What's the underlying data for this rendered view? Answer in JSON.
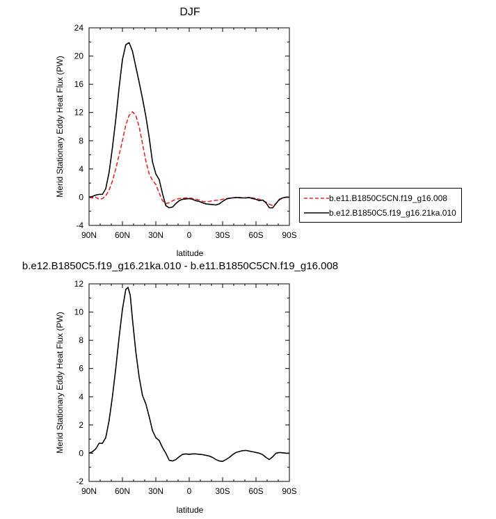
{
  "chart_data": [
    {
      "type": "line",
      "title": "DJF",
      "xlabel": "latitude",
      "ylabel": "Merid Stationary Eddy Heat Flux (PW)",
      "xlim": [
        90,
        -90
      ],
      "ylim": [
        -4,
        24
      ],
      "x_ticks": [
        "90N",
        "60N",
        "30N",
        "0",
        "30S",
        "60S",
        "90S"
      ],
      "y_ticks": [
        "-4",
        "0",
        "4",
        "8",
        "12",
        "16",
        "20",
        "24"
      ],
      "legend_position": "right",
      "series": [
        {
          "name": "b.e11.B1850C5CN.f19_g16.008",
          "color": "#e8262a",
          "style": "dashed",
          "points": [
            [
              90,
              0
            ],
            [
              87,
              -0.1
            ],
            [
              84,
              0
            ],
            [
              81,
              -0.3
            ],
            [
              78,
              -0.2
            ],
            [
              75,
              0.2
            ],
            [
              72,
              1.0
            ],
            [
              69,
              2.3
            ],
            [
              66,
              4.0
            ],
            [
              63,
              6.0
            ],
            [
              60,
              8.0
            ],
            [
              57,
              10.2
            ],
            [
              54,
              11.6
            ],
            [
              51,
              12.1
            ],
            [
              48,
              11.6
            ],
            [
              45,
              10.0
            ],
            [
              42,
              7.6
            ],
            [
              39,
              5.2
            ],
            [
              36,
              3.3
            ],
            [
              33,
              2.4
            ],
            [
              30,
              1.8
            ],
            [
              27,
              0.6
            ],
            [
              24,
              -0.5
            ],
            [
              21,
              -0.9
            ],
            [
              18,
              -0.8
            ],
            [
              15,
              -0.5
            ],
            [
              12,
              -0.3
            ],
            [
              9,
              -0.2
            ],
            [
              6,
              -0.15
            ],
            [
              3,
              -0.1
            ],
            [
              0,
              -0.1
            ],
            [
              -3,
              -0.2
            ],
            [
              -6,
              -0.3
            ],
            [
              -9,
              -0.4
            ],
            [
              -12,
              -0.6
            ],
            [
              -15,
              -0.65
            ],
            [
              -18,
              -0.6
            ],
            [
              -21,
              -0.5
            ],
            [
              -24,
              -0.45
            ],
            [
              -27,
              -0.4
            ],
            [
              -30,
              -0.3
            ],
            [
              -33,
              -0.2
            ],
            [
              -36,
              -0.15
            ],
            [
              -39,
              -0.1
            ],
            [
              -42,
              -0.05
            ],
            [
              -45,
              -0.1
            ],
            [
              -48,
              -0.1
            ],
            [
              -51,
              -0.1
            ],
            [
              -54,
              -0.05
            ],
            [
              -57,
              -0.1
            ],
            [
              -60,
              -0.2
            ],
            [
              -63,
              -0.3
            ],
            [
              -66,
              -0.5
            ],
            [
              -69,
              -0.7
            ],
            [
              -72,
              -1.0
            ],
            [
              -75,
              -1.2
            ],
            [
              -78,
              -0.9
            ],
            [
              -81,
              -0.4
            ],
            [
              -84,
              -0.1
            ],
            [
              -87,
              0
            ],
            [
              -90,
              0
            ]
          ]
        },
        {
          "name": "b.e12.B1850C5.f19_g16.21ka.010",
          "color": "#000000",
          "style": "solid",
          "points": [
            [
              90,
              0
            ],
            [
              87,
              0.1
            ],
            [
              84,
              0.3
            ],
            [
              81,
              0.4
            ],
            [
              78,
              0.4
            ],
            [
              75,
              1.2
            ],
            [
              72,
              3.5
            ],
            [
              69,
              7.0
            ],
            [
              66,
              11.0
            ],
            [
              63,
              15.5
            ],
            [
              60,
              19.5
            ],
            [
              57,
              21.6
            ],
            [
              54,
              21.9
            ],
            [
              51,
              20.7
            ],
            [
              48,
              18.5
            ],
            [
              45,
              16.3
            ],
            [
              42,
              14.0
            ],
            [
              39,
              11.5
            ],
            [
              36,
              8.5
            ],
            [
              33,
              5.0
            ],
            [
              30,
              3.3
            ],
            [
              27,
              2.5
            ],
            [
              24,
              0.5
            ],
            [
              21,
              -1.2
            ],
            [
              18,
              -1.5
            ],
            [
              15,
              -1.4
            ],
            [
              12,
              -0.9
            ],
            [
              9,
              -0.5
            ],
            [
              6,
              -0.3
            ],
            [
              3,
              -0.25
            ],
            [
              0,
              -0.2
            ],
            [
              -3,
              -0.3
            ],
            [
              -6,
              -0.5
            ],
            [
              -9,
              -0.6
            ],
            [
              -12,
              -0.8
            ],
            [
              -15,
              -0.95
            ],
            [
              -18,
              -1.0
            ],
            [
              -21,
              -1.05
            ],
            [
              -24,
              -1.1
            ],
            [
              -27,
              -0.95
            ],
            [
              -30,
              -0.6
            ],
            [
              -33,
              -0.3
            ],
            [
              -36,
              -0.15
            ],
            [
              -39,
              -0.1
            ],
            [
              -42,
              -0.05
            ],
            [
              -45,
              -0.05
            ],
            [
              -48,
              -0.1
            ],
            [
              -51,
              -0.1
            ],
            [
              -54,
              -0.05
            ],
            [
              -57,
              -0.2
            ],
            [
              -60,
              -0.3
            ],
            [
              -63,
              -0.5
            ],
            [
              -66,
              -0.4
            ],
            [
              -69,
              -0.8
            ],
            [
              -72,
              -1.5
            ],
            [
              -75,
              -1.5
            ],
            [
              -78,
              -0.9
            ],
            [
              -81,
              -0.3
            ],
            [
              -84,
              -0.1
            ],
            [
              -87,
              0
            ],
            [
              -90,
              0
            ]
          ]
        }
      ]
    },
    {
      "type": "line",
      "title": "b.e12.B1850C5.f19_g16.21ka.010 - b.e11.B1850C5CN.f19_g16.008",
      "xlabel": "latitude",
      "ylabel": "Merid Stationary Eddy Heat Flux (PW)",
      "xlim": [
        90,
        -90
      ],
      "ylim": [
        -2,
        12
      ],
      "x_ticks": [
        "90N",
        "60N",
        "30N",
        "0",
        "30S",
        "60S",
        "90S"
      ],
      "y_ticks": [
        "-2",
        "0",
        "2",
        "4",
        "6",
        "8",
        "10",
        "12"
      ],
      "series": [
        {
          "color": "#000000",
          "style": "solid",
          "points": [
            [
              90,
              0
            ],
            [
              87,
              0.1
            ],
            [
              84,
              0.3
            ],
            [
              81,
              0.7
            ],
            [
              78,
              0.7
            ],
            [
              75,
              1.1
            ],
            [
              72,
              2.3
            ],
            [
              69,
              4.0
            ],
            [
              66,
              6.0
            ],
            [
              63,
              8.2
            ],
            [
              60,
              10.2
            ],
            [
              57,
              11.6
            ],
            [
              55,
              11.75
            ],
            [
              53,
              11.2
            ],
            [
              51,
              9.5
            ],
            [
              48,
              7.2
            ],
            [
              45,
              5.4
            ],
            [
              42,
              4.1
            ],
            [
              39,
              3.5
            ],
            [
              36,
              2.6
            ],
            [
              33,
              1.6
            ],
            [
              30,
              1.1
            ],
            [
              27,
              0.9
            ],
            [
              24,
              0.4
            ],
            [
              21,
              0
            ],
            [
              18,
              -0.5
            ],
            [
              15,
              -0.55
            ],
            [
              12,
              -0.45
            ],
            [
              9,
              -0.25
            ],
            [
              6,
              -0.08
            ],
            [
              3,
              -0.05
            ],
            [
              0,
              -0.08
            ],
            [
              -3,
              -0.05
            ],
            [
              -6,
              -0.05
            ],
            [
              -9,
              -0.08
            ],
            [
              -12,
              -0.1
            ],
            [
              -15,
              -0.15
            ],
            [
              -18,
              -0.2
            ],
            [
              -21,
              -0.3
            ],
            [
              -24,
              -0.45
            ],
            [
              -27,
              -0.55
            ],
            [
              -30,
              -0.58
            ],
            [
              -33,
              -0.45
            ],
            [
              -36,
              -0.3
            ],
            [
              -39,
              -0.1
            ],
            [
              -42,
              0.05
            ],
            [
              -45,
              0.12
            ],
            [
              -48,
              0.18
            ],
            [
              -51,
              0.2
            ],
            [
              -54,
              0.15
            ],
            [
              -57,
              0.1
            ],
            [
              -60,
              0.05
            ],
            [
              -63,
              0
            ],
            [
              -66,
              -0.1
            ],
            [
              -69,
              -0.3
            ],
            [
              -72,
              -0.45
            ],
            [
              -75,
              -0.25
            ],
            [
              -78,
              0
            ],
            [
              -81,
              0.05
            ],
            [
              -84,
              0.03
            ],
            [
              -87,
              0
            ],
            [
              -90,
              0
            ]
          ]
        }
      ]
    }
  ]
}
